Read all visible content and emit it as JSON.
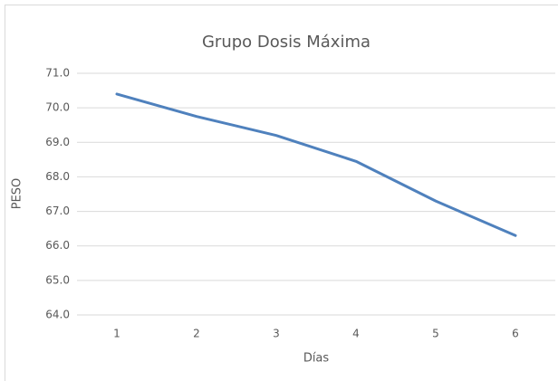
{
  "chart_data": {
    "type": "line",
    "title": "Grupo Dosis Máxima",
    "xlabel": "Días",
    "ylabel": "PESO",
    "categories": [
      "1",
      "2",
      "3",
      "4",
      "5",
      "6"
    ],
    "series": [
      {
        "name": "PESO",
        "color": "#4f81bd",
        "values": [
          70.4,
          69.75,
          69.2,
          68.45,
          67.3,
          66.3
        ]
      }
    ],
    "ylim": [
      64,
      71
    ],
    "yticks": [
      {
        "value": 64,
        "label": "64.0"
      },
      {
        "value": 65,
        "label": "65.0"
      },
      {
        "value": 66,
        "label": "66.0"
      },
      {
        "value": 67,
        "label": "67.0"
      },
      {
        "value": 68,
        "label": "68.0"
      },
      {
        "value": 69,
        "label": "69.0"
      },
      {
        "value": 70,
        "label": "70.0"
      },
      {
        "value": 71,
        "label": "71.0"
      }
    ],
    "grid": true
  }
}
